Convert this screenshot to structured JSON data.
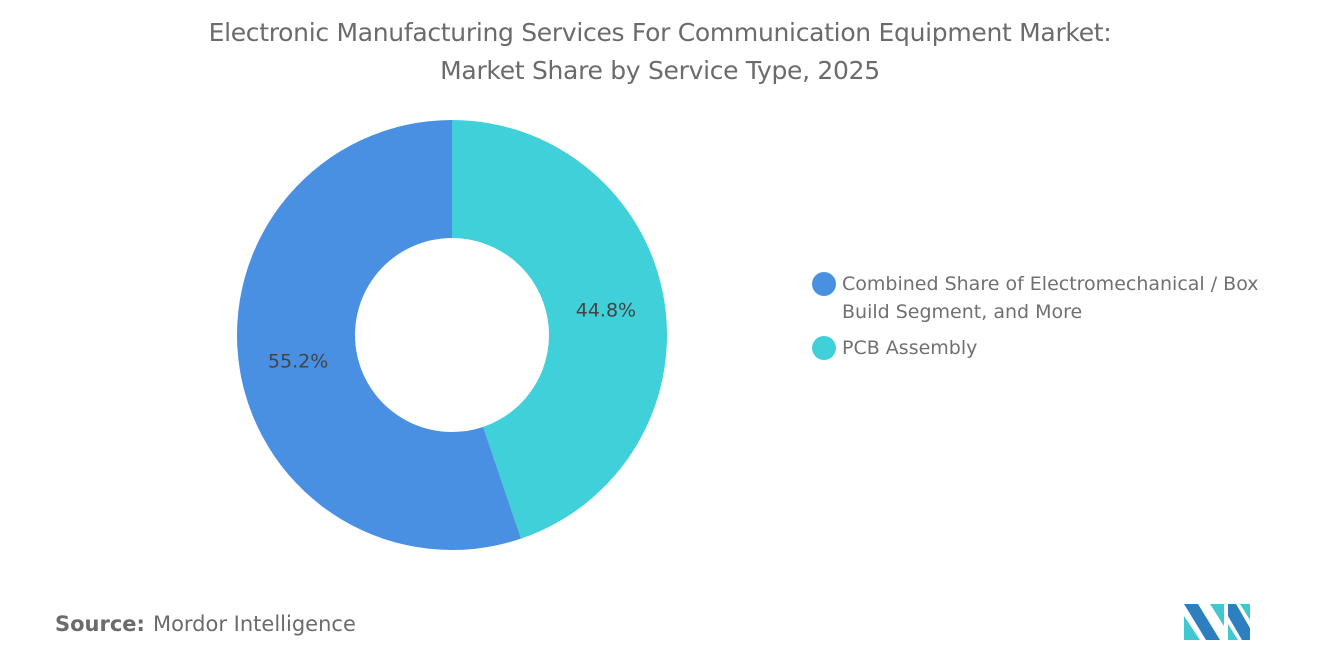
{
  "chart_data": {
    "type": "pie",
    "variant": "donut",
    "title": "Electronic Manufacturing Services For Communication Equipment Market:",
    "subtitle": "Market Share by Service Type, 2025",
    "slices": [
      {
        "label": "PCB Assembly",
        "value": 44.8,
        "display": "44.8%",
        "color": "#40D0DA"
      },
      {
        "label": "Combined Share of Electromechanical / Box Build Segment, and More",
        "value": 55.2,
        "display": "55.2%",
        "color": "#4A90E2"
      }
    ],
    "legend_order": [
      1,
      0
    ],
    "legend_placement": "right"
  },
  "source": {
    "label": "Source:",
    "value": "Mordor Intelligence"
  },
  "logo": {
    "name": "mordor-intelligence-logo",
    "colors": [
      "#2E7FC0",
      "#40C8D0"
    ]
  }
}
